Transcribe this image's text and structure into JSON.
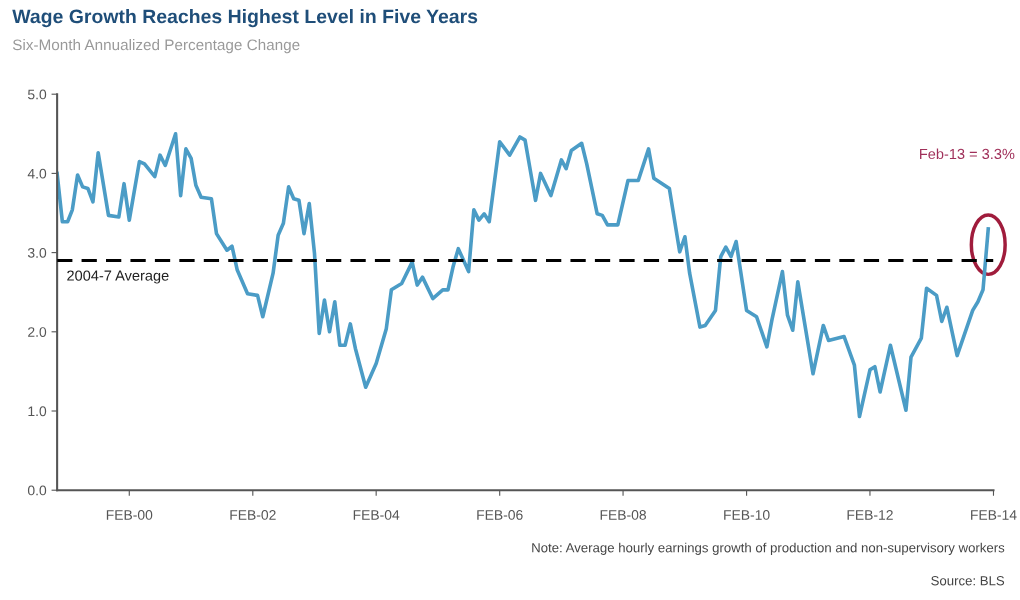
{
  "chart_data": {
    "type": "line",
    "title": "Wage Growth Reaches Highest Level in Five Years",
    "subtitle": "Six-Month Annualized Percentage Change",
    "x": [
      "1998-12",
      "1999-01",
      "1999-02",
      "1999-03",
      "1999-04",
      "1999-05",
      "1999-06",
      "1999-07",
      "1999-08",
      "1999-10",
      "1999-12",
      "2000-01",
      "2000-02",
      "2000-04",
      "2000-05",
      "2000-07",
      "2000-08",
      "2000-09",
      "2000-11",
      "2000-12",
      "2001-01",
      "2001-02",
      "2001-03",
      "2001-04",
      "2001-06",
      "2001-07",
      "2001-09",
      "2001-10",
      "2001-11",
      "2002-01",
      "2002-03",
      "2002-04",
      "2002-06",
      "2002-07",
      "2002-08",
      "2002-09",
      "2002-10",
      "2002-11",
      "2002-12",
      "2003-01",
      "2003-02",
      "2003-03",
      "2003-04",
      "2003-05",
      "2003-06",
      "2003-07",
      "2003-08",
      "2003-09",
      "2003-10",
      "2003-12",
      "2004-02",
      "2004-04",
      "2004-05",
      "2004-07",
      "2004-09",
      "2004-10",
      "2004-11",
      "2005-01",
      "2005-03",
      "2005-04",
      "2005-05",
      "2005-06",
      "2005-08",
      "2005-09",
      "2005-10",
      "2005-11",
      "2005-12",
      "2006-02",
      "2006-04",
      "2006-06",
      "2006-07",
      "2006-08",
      "2006-09",
      "2006-10",
      "2006-12",
      "2007-02",
      "2007-03",
      "2007-04",
      "2007-06",
      "2007-07",
      "2007-09",
      "2007-10",
      "2007-11",
      "2008-01",
      "2008-03",
      "2008-05",
      "2008-07",
      "2008-08",
      "2008-11",
      "2009-01",
      "2009-02",
      "2009-03",
      "2009-05",
      "2009-06",
      "2009-08",
      "2009-09",
      "2009-10",
      "2009-11",
      "2009-12",
      "2010-02",
      "2010-04",
      "2010-06",
      "2010-07",
      "2010-09",
      "2010-10",
      "2010-11",
      "2010-12",
      "2011-03",
      "2011-05",
      "2011-06",
      "2011-09",
      "2011-11",
      "2011-12",
      "2012-02",
      "2012-03",
      "2012-04",
      "2012-06",
      "2012-09",
      "2012-10",
      "2012-12",
      "2013-01",
      "2013-03",
      "2013-04",
      "2013-05",
      "2013-07",
      "2013-10",
      "2013-11",
      "2013-12",
      "2014-01"
    ],
    "series": [
      {
        "color": "#4b9cc6",
        "values": [
          4.0,
          3.39,
          3.39,
          3.54,
          3.98,
          3.83,
          3.81,
          3.64,
          4.26,
          3.47,
          3.45,
          3.87,
          3.41,
          4.15,
          4.12,
          3.96,
          4.23,
          4.1,
          4.5,
          3.72,
          4.31,
          4.19,
          3.85,
          3.7,
          3.68,
          3.24,
          3.03,
          3.08,
          2.78,
          2.48,
          2.46,
          2.19,
          2.74,
          3.22,
          3.37,
          3.83,
          3.68,
          3.66,
          3.24,
          3.62,
          2.99,
          1.98,
          2.4,
          2.0,
          2.38,
          1.83,
          1.83,
          2.1,
          1.79,
          1.3,
          1.6,
          2.04,
          2.53,
          2.61,
          2.88,
          2.59,
          2.69,
          2.42,
          2.53,
          2.53,
          2.82,
          3.05,
          2.76,
          3.54,
          3.41,
          3.49,
          3.39,
          4.4,
          4.23,
          4.46,
          4.42,
          4.04,
          3.66,
          4.0,
          3.72,
          4.17,
          4.06,
          4.29,
          4.38,
          4.12,
          3.49,
          3.47,
          3.35,
          3.35,
          3.91,
          3.91,
          4.31,
          3.94,
          3.81,
          3.01,
          3.2,
          2.74,
          2.06,
          2.08,
          2.27,
          2.95,
          3.07,
          2.95,
          3.14,
          2.27,
          2.19,
          1.81,
          2.15,
          2.76,
          2.21,
          2.02,
          2.63,
          1.47,
          2.08,
          1.89,
          1.94,
          1.58,
          0.93,
          1.52,
          1.56,
          1.24,
          1.83,
          1.01,
          1.68,
          1.92,
          2.55,
          2.46,
          2.13,
          2.31,
          1.7,
          2.27,
          2.38,
          2.53,
          3.3
        ]
      }
    ],
    "xlim": [
      "1998-12",
      "2014-02"
    ],
    "xticks": [
      {
        "value": "2000-02",
        "label": "FEB-00"
      },
      {
        "value": "2002-02",
        "label": "FEB-02"
      },
      {
        "value": "2004-02",
        "label": "FEB-04"
      },
      {
        "value": "2006-02",
        "label": "FEB-06"
      },
      {
        "value": "2008-02",
        "label": "FEB-08"
      },
      {
        "value": "2010-02",
        "label": "FEB-10"
      },
      {
        "value": "2012-02",
        "label": "FEB-12"
      },
      {
        "value": "2014-02",
        "label": "FEB-14"
      }
    ],
    "ylim": [
      0,
      5
    ],
    "yticks": [
      {
        "value": 0,
        "label": "0.0"
      },
      {
        "value": 1,
        "label": "1.0"
      },
      {
        "value": 2,
        "label": "2.0"
      },
      {
        "value": 3,
        "label": "3.0"
      },
      {
        "value": 4,
        "label": "4.0"
      },
      {
        "value": 5,
        "label": "5.0"
      }
    ],
    "ref_lines": [
      {
        "axis": "y",
        "value": 2.9,
        "label": "2004-7 Average",
        "color": "#000000",
        "line_style": "dashed"
      }
    ],
    "annotations": [
      "Feb-13 = 3.3%",
      "Note: Average hourly earnings growth of production and non-supervisory workers",
      "Source: BLS"
    ],
    "grid": false,
    "legend": false
  }
}
